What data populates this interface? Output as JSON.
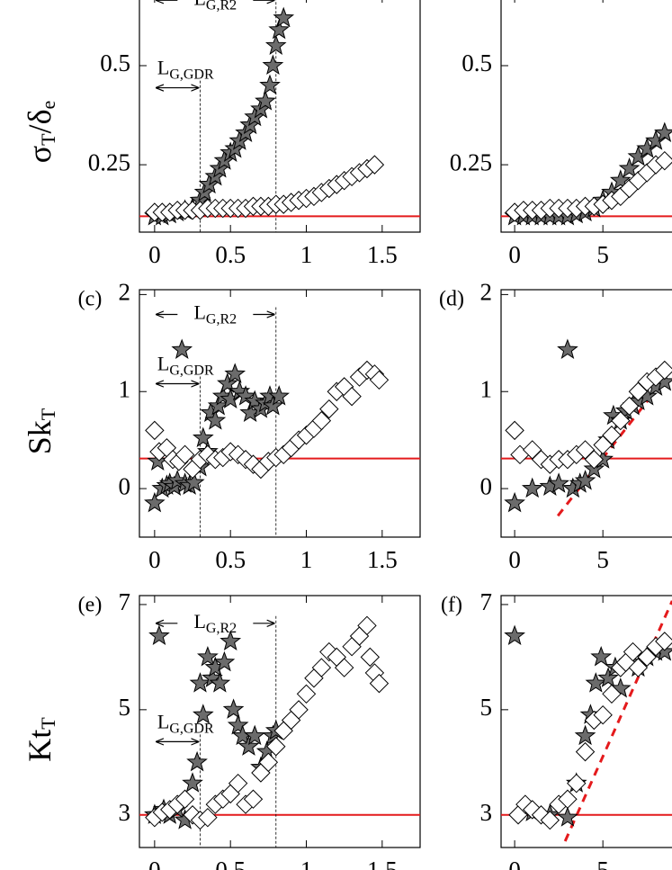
{
  "chart_data": [
    {
      "type": "scatter",
      "ylabel": [
        {
          "text": "σ",
          "sub": "T"
        },
        {
          "text": "/δ",
          "sub": "e"
        }
      ],
      "xlim": [
        -0.1,
        1.75
      ],
      "ylim": [
        0.08,
        0.677
      ],
      "xticks": [
        0,
        0.5,
        1,
        1.5
      ],
      "yticks": [
        0.25,
        0.5
      ],
      "hline": {
        "value": 0.12,
        "color": "#e41a1c"
      },
      "spans": [
        {
          "x0": 0,
          "x1": 0.8,
          "text": "L",
          "sub": "G,R2"
        },
        {
          "x0": 0,
          "x1": 0.3,
          "text": "L",
          "sub": "G,GDR"
        }
      ],
      "series": [
        {
          "marker": "star",
          "color": "#6b6b6b",
          "x": [
            0,
            0.05,
            0.1,
            0.15,
            0.2,
            0.25,
            0.3,
            0.33,
            0.36,
            0.4,
            0.43,
            0.46,
            0.5,
            0.53,
            0.56,
            0.6,
            0.63,
            0.66,
            0.7,
            0.73,
            0.76,
            0.78,
            0.8,
            0.82,
            0.85
          ],
          "y": [
            0.12,
            0.12,
            0.125,
            0.13,
            0.135,
            0.14,
            0.16,
            0.18,
            0.2,
            0.22,
            0.24,
            0.26,
            0.28,
            0.29,
            0.31,
            0.33,
            0.35,
            0.37,
            0.39,
            0.41,
            0.45,
            0.5,
            0.55,
            0.59,
            0.62
          ]
        },
        {
          "marker": "diamond",
          "color": "#ffffff",
          "x": [
            0,
            0.05,
            0.1,
            0.15,
            0.2,
            0.25,
            0.3,
            0.35,
            0.4,
            0.45,
            0.5,
            0.55,
            0.6,
            0.65,
            0.7,
            0.75,
            0.8,
            0.85,
            0.9,
            0.95,
            1.0,
            1.05,
            1.1,
            1.15,
            1.2,
            1.25,
            1.3,
            1.35,
            1.4,
            1.45
          ],
          "y": [
            0.13,
            0.13,
            0.13,
            0.135,
            0.135,
            0.135,
            0.135,
            0.14,
            0.14,
            0.14,
            0.14,
            0.14,
            0.14,
            0.145,
            0.145,
            0.145,
            0.15,
            0.15,
            0.155,
            0.16,
            0.165,
            0.17,
            0.18,
            0.19,
            0.2,
            0.21,
            0.22,
            0.23,
            0.24,
            0.25
          ]
        }
      ]
    },
    {
      "type": "scatter",
      "xlim": [
        -0.77,
        10.6
      ],
      "ylim": [
        0.08,
        0.677
      ],
      "xticks": [
        0,
        5
      ],
      "yticks": [
        0.25,
        0.5
      ],
      "hline": {
        "value": 0.12,
        "color": "#e41a1c"
      },
      "series": [
        {
          "marker": "star",
          "color": "#6b6b6b",
          "x": [
            0,
            0.5,
            1,
            1.5,
            2,
            2.5,
            3,
            3.5,
            4,
            4.5,
            5,
            5.5,
            6,
            6.5,
            7,
            7.5,
            8,
            8.5
          ],
          "y": [
            0.12,
            0.12,
            0.12,
            0.12,
            0.12,
            0.12,
            0.12,
            0.125,
            0.13,
            0.14,
            0.16,
            0.18,
            0.21,
            0.24,
            0.27,
            0.29,
            0.31,
            0.33
          ]
        },
        {
          "marker": "diamond",
          "color": "#ffffff",
          "x": [
            0,
            0.5,
            1,
            1.5,
            2,
            2.5,
            3,
            3.5,
            4,
            4.5,
            5,
            5.5,
            6,
            6.5,
            7,
            7.5,
            8,
            8.5
          ],
          "y": [
            0.13,
            0.135,
            0.135,
            0.135,
            0.14,
            0.14,
            0.14,
            0.14,
            0.145,
            0.145,
            0.15,
            0.16,
            0.17,
            0.19,
            0.21,
            0.23,
            0.25,
            0.26
          ]
        }
      ]
    },
    {
      "type": "scatter",
      "panel_label": "(c)",
      "ylabel": [
        {
          "text": "Sk",
          "sub": "T"
        }
      ],
      "xlim": [
        -0.1,
        1.75
      ],
      "ylim": [
        -0.5,
        2.05
      ],
      "xticks": [
        0,
        0.5,
        1,
        1.5
      ],
      "yticks": [
        0,
        1,
        2
      ],
      "hline": {
        "value": 0.31,
        "color": "#e41a1c"
      },
      "spans": [
        {
          "x0": 0,
          "x1": 0.8,
          "text": "L",
          "sub": "G,R2"
        },
        {
          "x0": 0,
          "x1": 0.3,
          "text": "L",
          "sub": "G,GDR"
        }
      ],
      "series": [
        {
          "marker": "star",
          "color": "#6b6b6b",
          "x": [
            0,
            0.02,
            0.05,
            0.08,
            0.1,
            0.13,
            0.15,
            0.18,
            0.2,
            0.23,
            0.26,
            0.3,
            0.32,
            0.35,
            0.37,
            0.4,
            0.42,
            0.45,
            0.48,
            0.5,
            0.53,
            0.56,
            0.6,
            0.63,
            0.66,
            0.7,
            0.73,
            0.76,
            0.78,
            0.82
          ],
          "y": [
            -0.15,
            0.28,
            0.0,
            0.03,
            0.05,
            0.02,
            0.08,
            1.43,
            0.05,
            0.03,
            0.06,
            0.22,
            0.52,
            0.38,
            0.78,
            0.7,
            0.85,
            0.95,
            1.08,
            0.92,
            1.18,
            1.0,
            0.95,
            0.78,
            0.9,
            0.82,
            0.88,
            0.95,
            0.85,
            0.95
          ]
        },
        {
          "marker": "diamond",
          "color": "#ffffff",
          "x": [
            0,
            0.03,
            0.08,
            0.12,
            0.16,
            0.2,
            0.25,
            0.3,
            0.35,
            0.4,
            0.45,
            0.5,
            0.55,
            0.6,
            0.65,
            0.7,
            0.75,
            0.8,
            0.85,
            0.9,
            0.95,
            1.0,
            1.05,
            1.1,
            1.15,
            1.2,
            1.25,
            1.3,
            1.35,
            1.4,
            1.45,
            1.48
          ],
          "y": [
            0.6,
            0.38,
            0.42,
            0.3,
            0.28,
            0.35,
            0.2,
            0.3,
            0.35,
            0.3,
            0.32,
            0.38,
            0.35,
            0.3,
            0.25,
            0.2,
            0.28,
            0.32,
            0.35,
            0.42,
            0.5,
            0.55,
            0.62,
            0.7,
            0.82,
            1.0,
            1.05,
            0.95,
            1.15,
            1.22,
            1.18,
            1.12
          ]
        }
      ]
    },
    {
      "type": "scatter",
      "panel_label": "(d)",
      "xlim": [
        -0.77,
        10.6
      ],
      "ylim": [
        -0.5,
        2.05
      ],
      "xticks": [
        0,
        5
      ],
      "yticks": [
        0,
        1,
        2
      ],
      "hline": {
        "value": 0.31,
        "color": "#e41a1c"
      },
      "trend": {
        "color": "#e41a1c",
        "x": [
          2.45,
          7.55
        ],
        "y": [
          -0.28,
          0.91
        ]
      },
      "series": [
        {
          "marker": "star",
          "color": "#6b6b6b",
          "x": [
            0,
            1,
            2,
            2.5,
            3,
            3.3,
            3.7,
            4,
            4.5,
            5,
            5.3,
            5.6,
            6,
            6.3,
            6.7,
            7,
            7.5,
            8,
            8.5
          ],
          "y": [
            -0.15,
            0,
            0.02,
            0.05,
            1.43,
            0.0,
            0.05,
            0.08,
            0.2,
            0.3,
            0.5,
            0.75,
            0.7,
            0.8,
            0.85,
            0.9,
            0.95,
            1.05,
            1.1
          ]
        },
        {
          "marker": "diamond",
          "color": "#ffffff",
          "x": [
            0,
            0.3,
            1,
            1.5,
            2,
            2.5,
            3,
            3.5,
            4,
            4.5,
            5,
            5.5,
            6,
            6.5,
            7,
            7.5,
            8,
            8.5
          ],
          "y": [
            0.6,
            0.35,
            0.4,
            0.3,
            0.25,
            0.3,
            0.3,
            0.35,
            0.4,
            0.3,
            0.45,
            0.55,
            0.7,
            0.85,
            1.0,
            1.1,
            1.15,
            1.22
          ]
        }
      ]
    },
    {
      "type": "scatter",
      "panel_label": "(e)",
      "ylabel": [
        {
          "text": "Kt",
          "sub": "T"
        }
      ],
      "xlim": [
        -0.1,
        1.75
      ],
      "ylim": [
        2.38,
        7.17
      ],
      "xticks": [
        0,
        0.5,
        1,
        1.5
      ],
      "yticks": [
        3,
        5,
        7
      ],
      "hline": {
        "value": 3.0,
        "color": "#e41a1c"
      },
      "spans": [
        {
          "x0": 0,
          "x1": 0.8,
          "text": "L",
          "sub": "G,R2"
        },
        {
          "x0": 0,
          "x1": 0.3,
          "text": "L",
          "sub": "G,GDR"
        }
      ],
      "series": [
        {
          "marker": "star",
          "color": "#6b6b6b",
          "x": [
            0,
            0.03,
            0.06,
            0.1,
            0.15,
            0.2,
            0.25,
            0.28,
            0.3,
            0.32,
            0.35,
            0.38,
            0.4,
            0.43,
            0.46,
            0.5,
            0.52,
            0.55,
            0.58,
            0.62,
            0.66,
            0.7,
            0.74,
            0.78,
            0.8
          ],
          "y": [
            3.0,
            6.4,
            3.1,
            3.0,
            3.1,
            2.9,
            3.6,
            4.0,
            5.5,
            4.9,
            6.0,
            5.6,
            5.8,
            5.5,
            5.9,
            6.3,
            5.0,
            4.7,
            4.5,
            4.3,
            4.5,
            3.9,
            4.2,
            4.5,
            4.6
          ]
        },
        {
          "marker": "diamond",
          "color": "#ffffff",
          "x": [
            0,
            0.05,
            0.1,
            0.15,
            0.2,
            0.25,
            0.3,
            0.35,
            0.4,
            0.45,
            0.5,
            0.55,
            0.6,
            0.65,
            0.7,
            0.75,
            0.8,
            0.85,
            0.9,
            0.95,
            1.0,
            1.05,
            1.1,
            1.15,
            1.2,
            1.25,
            1.3,
            1.35,
            1.4,
            1.42,
            1.45,
            1.48
          ],
          "y": [
            2.95,
            3.05,
            3.1,
            3.2,
            3.3,
            3.0,
            2.9,
            2.95,
            3.2,
            3.3,
            3.4,
            3.6,
            3.2,
            3.3,
            3.8,
            4.0,
            4.3,
            4.6,
            4.8,
            5.0,
            5.3,
            5.6,
            5.8,
            6.1,
            6.0,
            5.8,
            6.2,
            6.4,
            6.6,
            6.0,
            5.7,
            5.5
          ]
        }
      ]
    },
    {
      "type": "scatter",
      "panel_label": "(f)",
      "xlim": [
        -0.77,
        10.6
      ],
      "ylim": [
        2.38,
        7.17
      ],
      "xticks": [
        0,
        5
      ],
      "yticks": [
        3,
        5,
        7
      ],
      "hline": {
        "value": 3.0,
        "color": "#e41a1c"
      },
      "trend": {
        "color": "#e41a1c",
        "x": [
          2.86,
          8.93
        ],
        "y": [
          2.5,
          7.07
        ]
      },
      "series": [
        {
          "marker": "star",
          "color": "#6b6b6b",
          "x": [
            0,
            1,
            2,
            3,
            3.5,
            4,
            4.3,
            4.6,
            4.9,
            5.3,
            5.7,
            6,
            6.5,
            7,
            7.5,
            8,
            8.5
          ],
          "y": [
            6.4,
            3.05,
            3.0,
            2.95,
            3.6,
            4.5,
            4.9,
            5.5,
            6.0,
            5.6,
            5.8,
            5.4,
            5.9,
            5.8,
            6.0,
            6.1,
            6.1
          ]
        },
        {
          "marker": "diamond",
          "color": "#ffffff",
          "x": [
            0.2,
            0.6,
            1,
            1.5,
            2,
            2.5,
            3,
            3.5,
            4,
            4.5,
            5,
            5.5,
            6,
            6.3,
            6.7,
            7,
            7.5,
            8,
            8.5
          ],
          "y": [
            3.0,
            3.2,
            3.1,
            3.0,
            2.9,
            3.2,
            3.3,
            3.6,
            4.2,
            4.8,
            4.9,
            5.3,
            5.8,
            5.9,
            6.1,
            5.8,
            6.0,
            6.2,
            6.3
          ]
        }
      ]
    }
  ]
}
